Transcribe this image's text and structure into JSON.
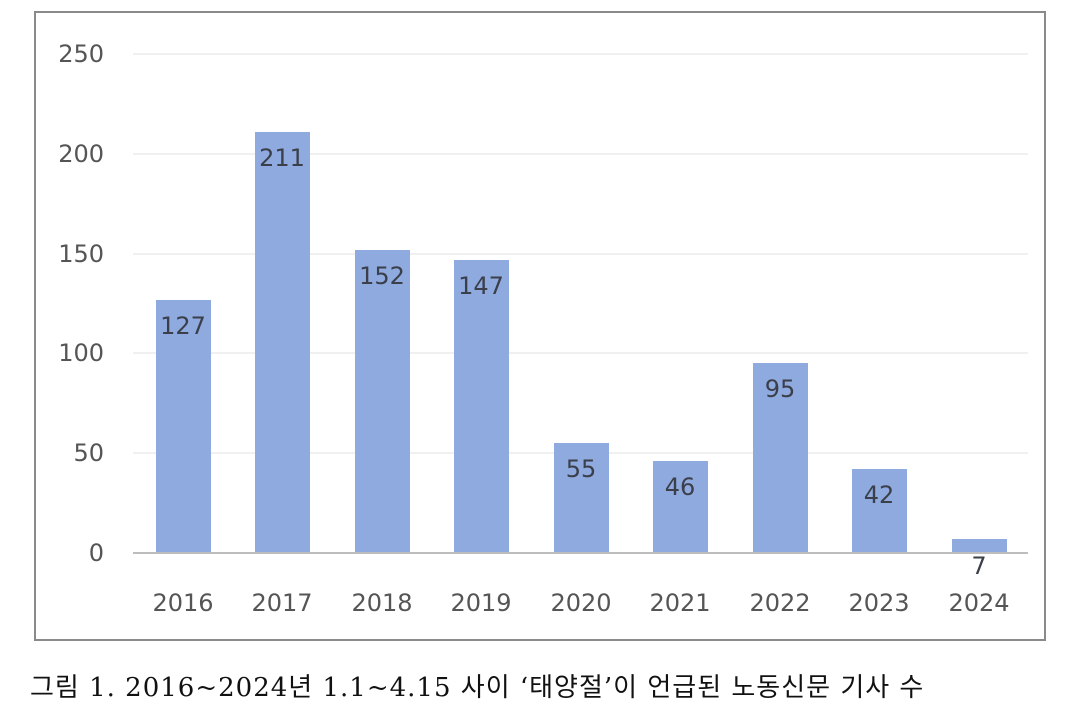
{
  "chart_data": {
    "type": "bar",
    "title": "",
    "xlabel": "",
    "ylabel": "",
    "ylim": [
      0,
      250
    ],
    "yticks": [
      0,
      50,
      100,
      150,
      200,
      250
    ],
    "grid": true,
    "legend": null,
    "categories": [
      "2016",
      "2017",
      "2018",
      "2019",
      "2020",
      "2021",
      "2022",
      "2023",
      "2024"
    ],
    "values": [
      127,
      211,
      152,
      147,
      55,
      46,
      95,
      42,
      7
    ],
    "bar_color": "#8faadf",
    "data_labels": [
      "127",
      "211",
      "152",
      "147",
      "55",
      "46",
      "95",
      "42",
      "7"
    ]
  },
  "axis": {
    "yticks": [
      "0",
      "50",
      "100",
      "150",
      "200",
      "250"
    ]
  },
  "caption": "그림 1. 2016~2024년 1.1~4.15 사이 ‘태양절’이 언급된 노동신문 기사 수"
}
